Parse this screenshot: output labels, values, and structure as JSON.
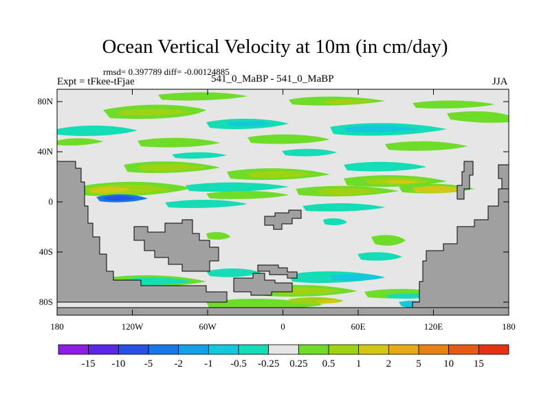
{
  "title": "Ocean Vertical Velocity at 10m (in cm/day)",
  "stats_text": "rmsd= 0.397789 diff= -0.00124885",
  "experiment": "Expt = tFkee-tFjae",
  "case_label": "541_0_MaBP - 541_0_MaBP",
  "season": "JJA",
  "lat_ticks": [
    "80N",
    "40N",
    "0",
    "40S",
    "80S"
  ],
  "lon_ticks": [
    "180",
    "120W",
    "60W",
    "0",
    "60E",
    "120E",
    "180"
  ],
  "colorbar": {
    "labels": [
      "-15",
      "-10",
      "-5",
      "-2",
      "-1",
      "-0.5",
      "-0.25",
      "0.25",
      "0.5",
      "1",
      "2",
      "5",
      "10",
      "15"
    ],
    "colors": [
      "#8c1ee6",
      "#5a28e6",
      "#2850e6",
      "#1478e6",
      "#14a0e6",
      "#14c8dc",
      "#14dcb4",
      "#e6e6e6",
      "#6edc28",
      "#a0d214",
      "#d2c814",
      "#e6aa14",
      "#e68214",
      "#e65a14",
      "#e63214"
    ]
  },
  "colors": {
    "land": "#a0a0a0",
    "ocean": "#e6e6e6"
  }
}
